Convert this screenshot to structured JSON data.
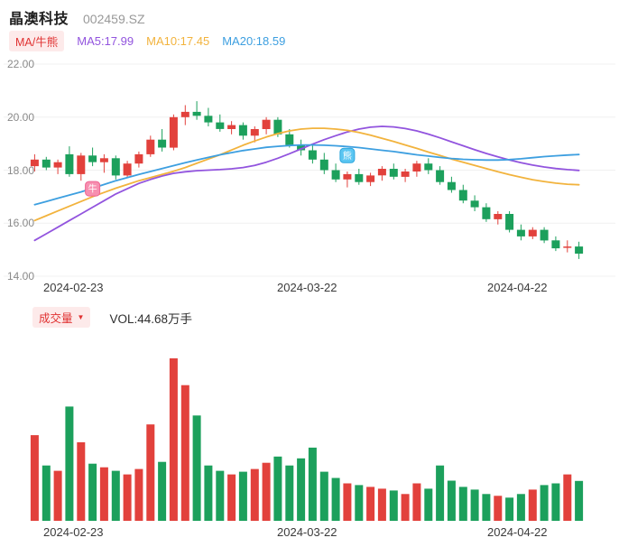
{
  "header": {
    "title": "晶澳科技",
    "code": "002459.SZ"
  },
  "legend": {
    "indicator_badge": "MA/牛熊",
    "ma5": "MA5:17.99",
    "ma10": "MA10:17.45",
    "ma20": "MA20:18.59"
  },
  "volume_header": {
    "badge": "成交量",
    "dropdown_arrow": "▼",
    "vol": "VOL:44.68万手"
  },
  "colors": {
    "up": "#e2413c",
    "down": "#1ca05c",
    "ma5": "#9254de",
    "ma10": "#f2b33d",
    "ma20": "#3d9fe0",
    "badge_text": "#e03131",
    "badge_bg": "#fdeaea",
    "grid": "#f0f0f0",
    "axis_text": "#8a8a8a",
    "date_text": "#3a3a3a"
  },
  "chart_data": {
    "type": "candlestick",
    "title": "晶澳科技 002459.SZ 日K线与成交量",
    "ylim": [
      14,
      22
    ],
    "grid": true,
    "y_ticks": [
      {
        "value": 22,
        "label": "22.00"
      },
      {
        "value": 20,
        "label": "20.00"
      },
      {
        "value": 18,
        "label": "18.00"
      },
      {
        "value": 16,
        "label": "16.00"
      },
      {
        "value": 14,
        "label": "14.00"
      }
    ],
    "x_labels": [
      {
        "text": "2024-02-23",
        "index": 4
      },
      {
        "text": "2024-03-22",
        "index": 24
      },
      {
        "text": "2024-04-22",
        "index": 43
      }
    ],
    "dates": [
      "2024-02-19",
      "2024-02-20",
      "2024-02-21",
      "2024-02-22",
      "2024-02-23",
      "2024-02-26",
      "2024-02-27",
      "2024-02-28",
      "2024-02-29",
      "2024-03-01",
      "2024-03-04",
      "2024-03-05",
      "2024-03-06",
      "2024-03-07",
      "2024-03-08",
      "2024-03-11",
      "2024-03-12",
      "2024-03-13",
      "2024-03-14",
      "2024-03-15",
      "2024-03-18",
      "2024-03-19",
      "2024-03-20",
      "2024-03-21",
      "2024-03-22",
      "2024-03-25",
      "2024-03-26",
      "2024-03-27",
      "2024-03-28",
      "2024-03-29",
      "2024-04-01",
      "2024-04-02",
      "2024-04-03",
      "2024-04-08",
      "2024-04-09",
      "2024-04-10",
      "2024-04-11",
      "2024-04-12",
      "2024-04-15",
      "2024-04-16",
      "2024-04-17",
      "2024-04-18",
      "2024-04-19",
      "2024-04-22",
      "2024-04-23",
      "2024-04-24",
      "2024-04-25",
      "2024-04-26"
    ],
    "candles": [
      [
        18.15,
        18.6,
        17.95,
        18.4
      ],
      [
        18.4,
        18.5,
        18.0,
        18.1
      ],
      [
        18.1,
        18.4,
        17.85,
        18.3
      ],
      [
        18.6,
        18.9,
        17.75,
        17.85
      ],
      [
        17.85,
        18.65,
        17.6,
        18.55
      ],
      [
        18.55,
        18.85,
        18.15,
        18.3
      ],
      [
        18.3,
        18.6,
        17.9,
        18.45
      ],
      [
        18.45,
        18.55,
        17.65,
        17.8
      ],
      [
        17.8,
        18.35,
        17.7,
        18.25
      ],
      [
        18.25,
        18.7,
        18.1,
        18.6
      ],
      [
        18.6,
        19.3,
        18.5,
        19.15
      ],
      [
        19.15,
        19.55,
        18.7,
        18.85
      ],
      [
        18.85,
        20.1,
        18.75,
        20.0
      ],
      [
        20.0,
        20.45,
        19.7,
        20.2
      ],
      [
        20.2,
        20.6,
        19.9,
        20.05
      ],
      [
        20.05,
        20.35,
        19.65,
        19.8
      ],
      [
        19.8,
        20.1,
        19.45,
        19.55
      ],
      [
        19.55,
        19.85,
        19.35,
        19.7
      ],
      [
        19.7,
        19.8,
        19.15,
        19.3
      ],
      [
        19.3,
        19.65,
        19.05,
        19.55
      ],
      [
        19.55,
        20.0,
        19.35,
        19.9
      ],
      [
        19.9,
        20.0,
        19.25,
        19.35
      ],
      [
        19.35,
        19.55,
        18.85,
        18.95
      ],
      [
        18.95,
        19.15,
        18.55,
        18.75
      ],
      [
        18.75,
        18.95,
        18.25,
        18.4
      ],
      [
        18.4,
        18.65,
        17.85,
        18.0
      ],
      [
        18.0,
        18.25,
        17.55,
        17.65
      ],
      [
        17.65,
        17.95,
        17.35,
        17.85
      ],
      [
        17.85,
        18.05,
        17.45,
        17.55
      ],
      [
        17.55,
        17.9,
        17.4,
        17.8
      ],
      [
        17.8,
        18.15,
        17.6,
        18.05
      ],
      [
        18.05,
        18.25,
        17.65,
        17.75
      ],
      [
        17.75,
        18.05,
        17.55,
        17.95
      ],
      [
        17.95,
        18.35,
        17.75,
        18.25
      ],
      [
        18.25,
        18.45,
        17.85,
        18.0
      ],
      [
        18.0,
        18.15,
        17.45,
        17.55
      ],
      [
        17.55,
        17.75,
        17.15,
        17.25
      ],
      [
        17.25,
        17.45,
        16.75,
        16.85
      ],
      [
        16.85,
        17.05,
        16.45,
        16.6
      ],
      [
        16.6,
        16.75,
        16.05,
        16.15
      ],
      [
        16.15,
        16.45,
        15.95,
        16.35
      ],
      [
        16.35,
        16.45,
        15.65,
        15.75
      ],
      [
        15.75,
        15.95,
        15.35,
        15.5
      ],
      [
        15.5,
        15.85,
        15.4,
        15.75
      ],
      [
        15.75,
        15.85,
        15.25,
        15.35
      ],
      [
        15.35,
        15.5,
        14.95,
        15.05
      ],
      [
        15.1,
        15.35,
        14.9,
        15.12
      ],
      [
        15.12,
        15.3,
        14.65,
        14.85
      ]
    ],
    "volumes": [
      96,
      62,
      56,
      128,
      88,
      64,
      60,
      56,
      52,
      58,
      108,
      66,
      182,
      152,
      118,
      62,
      56,
      52,
      55,
      58,
      65,
      72,
      62,
      70,
      82,
      55,
      48,
      42,
      40,
      38,
      36,
      34,
      30,
      42,
      36,
      62,
      45,
      38,
      35,
      30,
      28,
      26,
      30,
      35,
      40,
      42,
      52,
      44.68
    ],
    "volume_unit": "万手",
    "latest_volume": 44.68,
    "series": [
      {
        "name": "MA5",
        "color_key": "ma5",
        "values": [
          15.35,
          15.6,
          15.85,
          16.1,
          16.35,
          16.6,
          16.85,
          17.1,
          17.3,
          17.5,
          17.65,
          17.78,
          17.88,
          17.94,
          17.98,
          18.0,
          18.02,
          18.05,
          18.1,
          18.18,
          18.3,
          18.45,
          18.62,
          18.8,
          18.98,
          19.15,
          19.3,
          19.44,
          19.55,
          19.62,
          19.65,
          19.63,
          19.57,
          19.48,
          19.36,
          19.22,
          19.07,
          18.92,
          18.77,
          18.63,
          18.5,
          18.38,
          18.28,
          18.19,
          18.12,
          18.06,
          18.02,
          17.99
        ]
      },
      {
        "name": "MA10",
        "color_key": "ma10",
        "values": [
          16.1,
          16.28,
          16.46,
          16.64,
          16.82,
          17.0,
          17.16,
          17.32,
          17.46,
          17.6,
          17.72,
          17.84,
          17.96,
          18.1,
          18.26,
          18.42,
          18.58,
          18.76,
          18.94,
          19.1,
          19.25,
          19.38,
          19.48,
          19.55,
          19.58,
          19.58,
          19.55,
          19.5,
          19.42,
          19.32,
          19.2,
          19.08,
          18.95,
          18.82,
          18.68,
          18.55,
          18.42,
          18.3,
          18.18,
          18.06,
          17.94,
          17.83,
          17.73,
          17.64,
          17.57,
          17.51,
          17.47,
          17.45
        ]
      },
      {
        "name": "MA20",
        "color_key": "ma20",
        "values": [
          16.7,
          16.82,
          16.94,
          17.06,
          17.18,
          17.32,
          17.46,
          17.6,
          17.72,
          17.84,
          17.95,
          18.06,
          18.17,
          18.28,
          18.38,
          18.48,
          18.58,
          18.66,
          18.74,
          18.8,
          18.86,
          18.9,
          18.93,
          18.95,
          18.95,
          18.94,
          18.92,
          18.89,
          18.85,
          18.8,
          18.75,
          18.7,
          18.64,
          18.58,
          18.53,
          18.48,
          18.44,
          18.41,
          18.39,
          18.38,
          18.38,
          18.4,
          18.43,
          18.47,
          18.51,
          18.54,
          18.57,
          18.59
        ]
      }
    ],
    "markers": [
      {
        "name": "bull",
        "glyph": "牛",
        "index": 5,
        "price": 17.3,
        "fill": "#f78fb0",
        "stroke": "#ee6492"
      },
      {
        "name": "bear",
        "glyph": "熊",
        "index": 27,
        "price": 18.55,
        "fill": "#5bc6f2",
        "stroke": "#2ea6dd"
      }
    ]
  }
}
